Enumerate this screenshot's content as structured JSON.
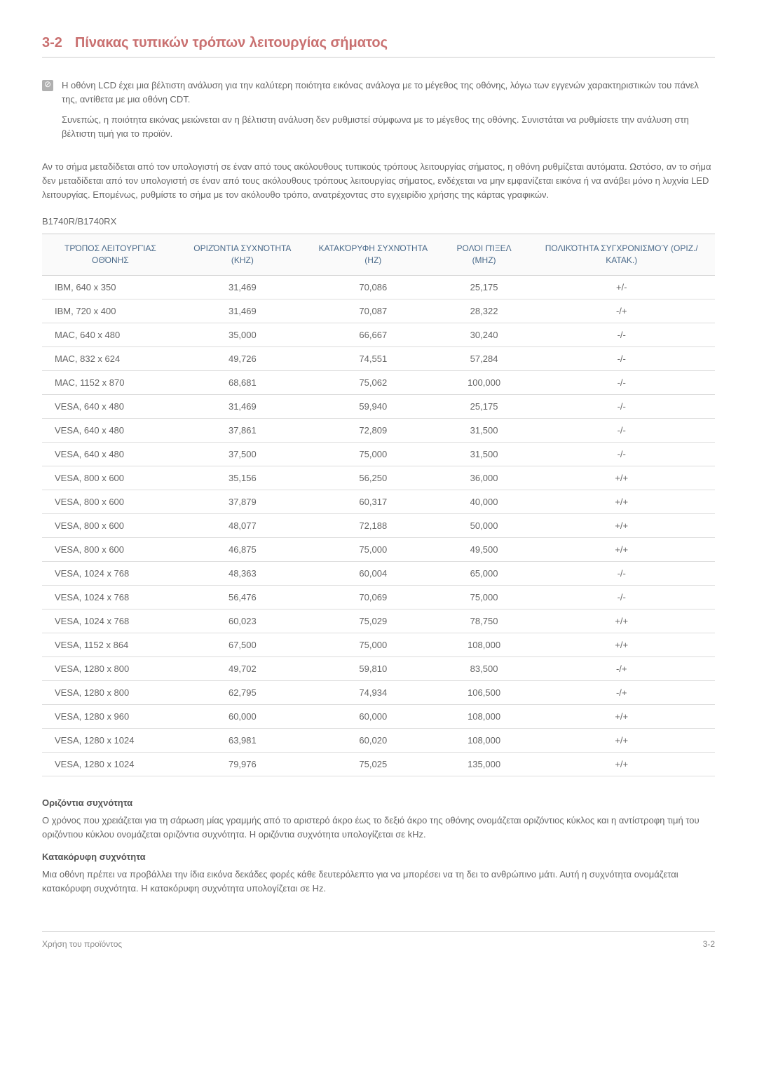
{
  "heading": {
    "number": "3-2",
    "title": "Πίνακας τυπικών τρόπων λειτουργίας σήματος"
  },
  "note": {
    "para1": "Η οθόνη LCD έχει μια βέλτιστη ανάλυση για την καλύτερη ποιότητα εικόνας ανάλογα με το μέγεθος της οθόνης, λόγω των εγγενών χαρακτηριστικών του πάνελ της, αντίθετα με μια οθόνη CDT.",
    "para2": "Συνεπώς, η ποιότητα εικόνας μειώνεται αν η βέλτιστη ανάλυση δεν ρυθμιστεί σύμφωνα με το μέγεθος της οθόνης. Συνιστάται να ρυθμίσετε την ανάλυση στη βέλτιστη τιμή για το προϊόν."
  },
  "body_para": "Αν το σήμα μεταδίδεται από τον υπολογιστή σε έναν από τους ακόλουθους τυπικούς τρόπους λειτουργίας σήματος, η οθόνη ρυθμίζεται αυτόματα. Ωστόσο, αν το σήμα δεν μεταδίδεται από τον υπολογιστή σε έναν από τους ακόλουθους τρόπους λειτουργίας σήματος, ενδέχεται να μην εμφανίζεται εικόνα ή να ανάβει μόνο η λυχνία LED λειτουργίας. Επομένως, ρυθμίστε το σήμα με τον ακόλουθο τρόπο, ανατρέχοντας στο εγχειρίδιο χρήσης της κάρτας γραφικών.",
  "model": "B1740R/B1740RX",
  "table": {
    "headers": {
      "mode": "ΤΡΌΠΟΣ ΛΕΙΤΟΥΡΓΊΑΣ ΟΘΌΝΗΣ",
      "hfreq": "ΟΡΙΖΌΝΤΙΑ ΣΥΧΝΌΤΗΤΑ (KHZ)",
      "vfreq": "ΚΑΤΑΚΌΡΥΦΗ ΣΥΧΝΌΤΗΤΑ (HZ)",
      "pixel": "ΡΟΛΌΙ ΠΊΞΕΛ (MHZ)",
      "polarity": "ΠΟΛΙΚΌΤΗΤΑ ΣΥΓΧΡΟΝΙΣΜΟΎ (ΟΡΙΖ./ΚΑΤΑΚ.)"
    },
    "rows": [
      {
        "mode": "IBM, 640 x 350",
        "h": "31,469",
        "v": "70,086",
        "p": "25,175",
        "pol": "+/-"
      },
      {
        "mode": "IBM, 720 x 400",
        "h": "31,469",
        "v": "70,087",
        "p": "28,322",
        "pol": "-/+"
      },
      {
        "mode": "MAC, 640 x 480",
        "h": "35,000",
        "v": "66,667",
        "p": "30,240",
        "pol": "-/-"
      },
      {
        "mode": "MAC, 832 x 624",
        "h": "49,726",
        "v": "74,551",
        "p": "57,284",
        "pol": "-/-"
      },
      {
        "mode": "MAC, 1152 x 870",
        "h": "68,681",
        "v": "75,062",
        "p": "100,000",
        "pol": "-/-"
      },
      {
        "mode": "VESA, 640 x 480",
        "h": "31,469",
        "v": "59,940",
        "p": "25,175",
        "pol": "-/-"
      },
      {
        "mode": "VESA, 640 x 480",
        "h": "37,861",
        "v": "72,809",
        "p": "31,500",
        "pol": "-/-"
      },
      {
        "mode": "VESA, 640 x 480",
        "h": "37,500",
        "v": "75,000",
        "p": "31,500",
        "pol": "-/-"
      },
      {
        "mode": "VESA, 800 x 600",
        "h": "35,156",
        "v": "56,250",
        "p": "36,000",
        "pol": "+/+"
      },
      {
        "mode": "VESA, 800 x 600",
        "h": "37,879",
        "v": "60,317",
        "p": "40,000",
        "pol": "+/+"
      },
      {
        "mode": "VESA, 800 x 600",
        "h": "48,077",
        "v": "72,188",
        "p": "50,000",
        "pol": "+/+"
      },
      {
        "mode": "VESA, 800 x 600",
        "h": "46,875",
        "v": "75,000",
        "p": "49,500",
        "pol": "+/+"
      },
      {
        "mode": "VESA, 1024 x 768",
        "h": "48,363",
        "v": "60,004",
        "p": "65,000",
        "pol": "-/-"
      },
      {
        "mode": "VESA, 1024 x 768",
        "h": "56,476",
        "v": "70,069",
        "p": "75,000",
        "pol": "-/-"
      },
      {
        "mode": "VESA, 1024 x 768",
        "h": "60,023",
        "v": "75,029",
        "p": "78,750",
        "pol": "+/+"
      },
      {
        "mode": "VESA, 1152 x 864",
        "h": "67,500",
        "v": "75,000",
        "p": "108,000",
        "pol": "+/+"
      },
      {
        "mode": "VESA, 1280 x 800",
        "h": "49,702",
        "v": "59,810",
        "p": "83,500",
        "pol": "-/+"
      },
      {
        "mode": "VESA, 1280 x 800",
        "h": "62,795",
        "v": "74,934",
        "p": "106,500",
        "pol": "-/+"
      },
      {
        "mode": "VESA, 1280 x 960",
        "h": "60,000",
        "v": "60,000",
        "p": "108,000",
        "pol": "+/+"
      },
      {
        "mode": "VESA, 1280 x 1024",
        "h": "63,981",
        "v": "60,020",
        "p": "108,000",
        "pol": "+/+"
      },
      {
        "mode": "VESA, 1280 x 1024",
        "h": "79,976",
        "v": "75,025",
        "p": "135,000",
        "pol": "+/+"
      }
    ]
  },
  "horiz_title": "Οριζόντια συχνότητα",
  "horiz_para": "Ο χρόνος που χρειάζεται για τη σάρωση μίας γραμμής από το αριστερό άκρο έως το δεξιό άκρο της οθόνης ονομάζεται οριζόντιος κύκλος και η αντίστροφη τιμή του οριζόντιου κύκλου ονομάζεται οριζόντια συχνότητα. Η οριζόντια συχνότητα υπολογίζεται σε kHz.",
  "vert_title": "Κατακόρυφη συχνότητα",
  "vert_para": "Μια οθόνη πρέπει να προβάλλει την ίδια εικόνα δεκάδες φορές κάθε δευτερόλεπτο για να μπορέσει να τη δει το ανθρώπινο μάτι. Αυτή η συχνότητα ονομάζεται κατακόρυφη συχνότητα. Η κατακόρυφη συχνότητα υπολογίζεται σε Hz.",
  "footer": {
    "left": "Χρήση του προϊόντος",
    "right": "3-2"
  }
}
